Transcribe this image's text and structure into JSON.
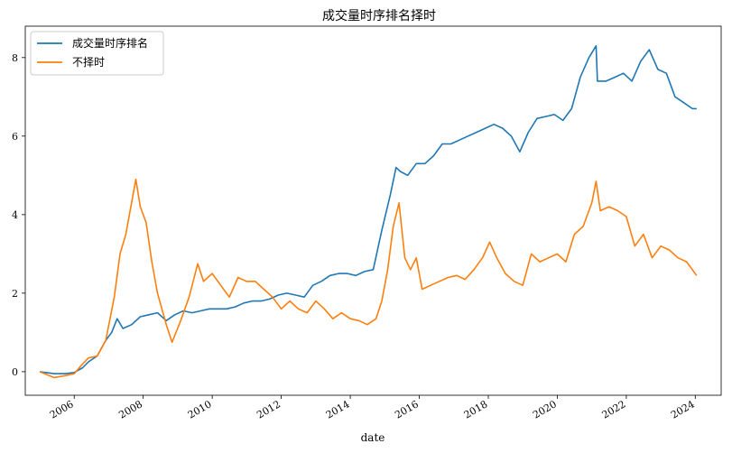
{
  "chart_data": {
    "type": "line",
    "title": "成交量时序排名择时",
    "xlabel": "date",
    "ylabel": "",
    "xlim": [
      "2004-08-01",
      "2024-10-01"
    ],
    "ylim": [
      -0.6,
      8.8
    ],
    "x_ticks": [
      "2006",
      "2008",
      "2010",
      "2012",
      "2014",
      "2016",
      "2018",
      "2020",
      "2022",
      "2024"
    ],
    "y_ticks": [
      0,
      2,
      4,
      6,
      8
    ],
    "grid": false,
    "legend_position": "top-left",
    "series": [
      {
        "name": "成交量时序排名",
        "color": "#1f77b4",
        "points": [
          [
            "2005-01-01",
            0.0
          ],
          [
            "2005-06-01",
            -0.05
          ],
          [
            "2005-10-01",
            -0.05
          ],
          [
            "2006-01-01",
            -0.02
          ],
          [
            "2006-04-01",
            0.1
          ],
          [
            "2006-06-01",
            0.25
          ],
          [
            "2006-09-01",
            0.4
          ],
          [
            "2006-12-01",
            0.8
          ],
          [
            "2007-02-01",
            1.0
          ],
          [
            "2007-04-01",
            1.35
          ],
          [
            "2007-06-01",
            1.1
          ],
          [
            "2007-09-01",
            1.2
          ],
          [
            "2007-12-01",
            1.4
          ],
          [
            "2008-03-01",
            1.45
          ],
          [
            "2008-06-01",
            1.5
          ],
          [
            "2008-09-01",
            1.3
          ],
          [
            "2008-12-01",
            1.45
          ],
          [
            "2009-03-01",
            1.55
          ],
          [
            "2009-06-01",
            1.5
          ],
          [
            "2009-09-01",
            1.55
          ],
          [
            "2009-12-01",
            1.6
          ],
          [
            "2010-03-01",
            1.6
          ],
          [
            "2010-06-01",
            1.6
          ],
          [
            "2010-09-01",
            1.65
          ],
          [
            "2010-12-01",
            1.75
          ],
          [
            "2011-03-01",
            1.8
          ],
          [
            "2011-06-01",
            1.8
          ],
          [
            "2011-09-01",
            1.85
          ],
          [
            "2011-12-01",
            1.95
          ],
          [
            "2012-03-01",
            2.0
          ],
          [
            "2012-06-01",
            1.95
          ],
          [
            "2012-09-01",
            1.9
          ],
          [
            "2012-12-01",
            2.2
          ],
          [
            "2013-03-01",
            2.3
          ],
          [
            "2013-06-01",
            2.45
          ],
          [
            "2013-09-01",
            2.5
          ],
          [
            "2013-12-01",
            2.5
          ],
          [
            "2014-03-01",
            2.45
          ],
          [
            "2014-06-01",
            2.55
          ],
          [
            "2014-09-01",
            2.6
          ],
          [
            "2014-12-01",
            3.6
          ],
          [
            "2015-03-01",
            4.5
          ],
          [
            "2015-05-01",
            5.2
          ],
          [
            "2015-06-15",
            5.1
          ],
          [
            "2015-09-01",
            5.0
          ],
          [
            "2015-12-01",
            5.3
          ],
          [
            "2016-03-01",
            5.3
          ],
          [
            "2016-06-01",
            5.5
          ],
          [
            "2016-09-01",
            5.8
          ],
          [
            "2016-12-01",
            5.8
          ],
          [
            "2017-03-01",
            5.9
          ],
          [
            "2017-06-01",
            6.0
          ],
          [
            "2017-09-01",
            6.1
          ],
          [
            "2017-12-01",
            6.2
          ],
          [
            "2018-03-01",
            6.3
          ],
          [
            "2018-06-01",
            6.2
          ],
          [
            "2018-09-01",
            6.0
          ],
          [
            "2018-12-01",
            5.6
          ],
          [
            "2019-03-01",
            6.1
          ],
          [
            "2019-06-01",
            6.45
          ],
          [
            "2019-09-01",
            6.5
          ],
          [
            "2019-12-01",
            6.55
          ],
          [
            "2020-03-01",
            6.4
          ],
          [
            "2020-06-01",
            6.7
          ],
          [
            "2020-09-01",
            7.5
          ],
          [
            "2020-12-01",
            8.0
          ],
          [
            "2021-02-15",
            8.3
          ],
          [
            "2021-03-01",
            7.4
          ],
          [
            "2021-06-01",
            7.4
          ],
          [
            "2021-09-01",
            7.5
          ],
          [
            "2021-12-01",
            7.6
          ],
          [
            "2022-03-01",
            7.4
          ],
          [
            "2022-06-01",
            7.9
          ],
          [
            "2022-09-01",
            8.2
          ],
          [
            "2022-12-01",
            7.7
          ],
          [
            "2023-03-01",
            7.6
          ],
          [
            "2023-06-01",
            7.0
          ],
          [
            "2023-09-01",
            6.85
          ],
          [
            "2023-12-01",
            6.7
          ],
          [
            "2024-01-15",
            6.7
          ]
        ]
      },
      {
        "name": "不择时",
        "color": "#ff7f0e",
        "points": [
          [
            "2005-01-01",
            0.0
          ],
          [
            "2005-06-01",
            -0.15
          ],
          [
            "2005-10-01",
            -0.1
          ],
          [
            "2006-01-01",
            -0.05
          ],
          [
            "2006-04-01",
            0.2
          ],
          [
            "2006-06-01",
            0.35
          ],
          [
            "2006-09-01",
            0.4
          ],
          [
            "2006-12-01",
            0.8
          ],
          [
            "2007-03-01",
            1.9
          ],
          [
            "2007-05-01",
            3.0
          ],
          [
            "2007-07-01",
            3.5
          ],
          [
            "2007-10-15",
            4.9
          ],
          [
            "2007-12-01",
            4.2
          ],
          [
            "2008-02-01",
            3.8
          ],
          [
            "2008-04-01",
            2.8
          ],
          [
            "2008-06-01",
            2.0
          ],
          [
            "2008-09-01",
            1.2
          ],
          [
            "2008-11-01",
            0.75
          ],
          [
            "2009-02-01",
            1.3
          ],
          [
            "2009-05-01",
            1.9
          ],
          [
            "2009-08-01",
            2.75
          ],
          [
            "2009-10-01",
            2.3
          ],
          [
            "2010-01-01",
            2.5
          ],
          [
            "2010-04-01",
            2.2
          ],
          [
            "2010-07-01",
            1.9
          ],
          [
            "2010-10-01",
            2.4
          ],
          [
            "2011-01-01",
            2.3
          ],
          [
            "2011-04-01",
            2.3
          ],
          [
            "2011-07-01",
            2.1
          ],
          [
            "2011-10-01",
            1.9
          ],
          [
            "2012-01-01",
            1.6
          ],
          [
            "2012-04-01",
            1.8
          ],
          [
            "2012-07-01",
            1.6
          ],
          [
            "2012-10-01",
            1.5
          ],
          [
            "2013-01-01",
            1.8
          ],
          [
            "2013-04-01",
            1.6
          ],
          [
            "2013-07-01",
            1.35
          ],
          [
            "2013-10-01",
            1.5
          ],
          [
            "2014-01-01",
            1.35
          ],
          [
            "2014-04-01",
            1.3
          ],
          [
            "2014-07-01",
            1.2
          ],
          [
            "2014-10-01",
            1.35
          ],
          [
            "2014-12-01",
            1.8
          ],
          [
            "2015-02-01",
            2.6
          ],
          [
            "2015-04-01",
            3.7
          ],
          [
            "2015-06-01",
            4.3
          ],
          [
            "2015-08-01",
            2.9
          ],
          [
            "2015-10-01",
            2.6
          ],
          [
            "2015-12-01",
            2.9
          ],
          [
            "2016-02-01",
            2.1
          ],
          [
            "2016-05-01",
            2.2
          ],
          [
            "2016-08-01",
            2.3
          ],
          [
            "2016-11-01",
            2.4
          ],
          [
            "2017-02-01",
            2.45
          ],
          [
            "2017-05-01",
            2.35
          ],
          [
            "2017-08-01",
            2.6
          ],
          [
            "2017-11-01",
            2.9
          ],
          [
            "2018-01-15",
            3.3
          ],
          [
            "2018-04-01",
            2.9
          ],
          [
            "2018-07-01",
            2.5
          ],
          [
            "2018-10-01",
            2.3
          ],
          [
            "2019-01-01",
            2.2
          ],
          [
            "2019-04-01",
            3.0
          ],
          [
            "2019-07-01",
            2.8
          ],
          [
            "2019-10-01",
            2.9
          ],
          [
            "2020-01-01",
            3.0
          ],
          [
            "2020-04-01",
            2.8
          ],
          [
            "2020-07-01",
            3.5
          ],
          [
            "2020-10-01",
            3.7
          ],
          [
            "2021-01-01",
            4.3
          ],
          [
            "2021-02-15",
            4.85
          ],
          [
            "2021-04-01",
            4.1
          ],
          [
            "2021-07-01",
            4.2
          ],
          [
            "2021-10-01",
            4.1
          ],
          [
            "2022-01-01",
            3.95
          ],
          [
            "2022-04-01",
            3.2
          ],
          [
            "2022-07-01",
            3.5
          ],
          [
            "2022-10-01",
            2.9
          ],
          [
            "2023-01-01",
            3.2
          ],
          [
            "2023-04-01",
            3.1
          ],
          [
            "2023-07-01",
            2.9
          ],
          [
            "2023-10-01",
            2.8
          ],
          [
            "2024-01-15",
            2.45
          ]
        ]
      }
    ]
  }
}
